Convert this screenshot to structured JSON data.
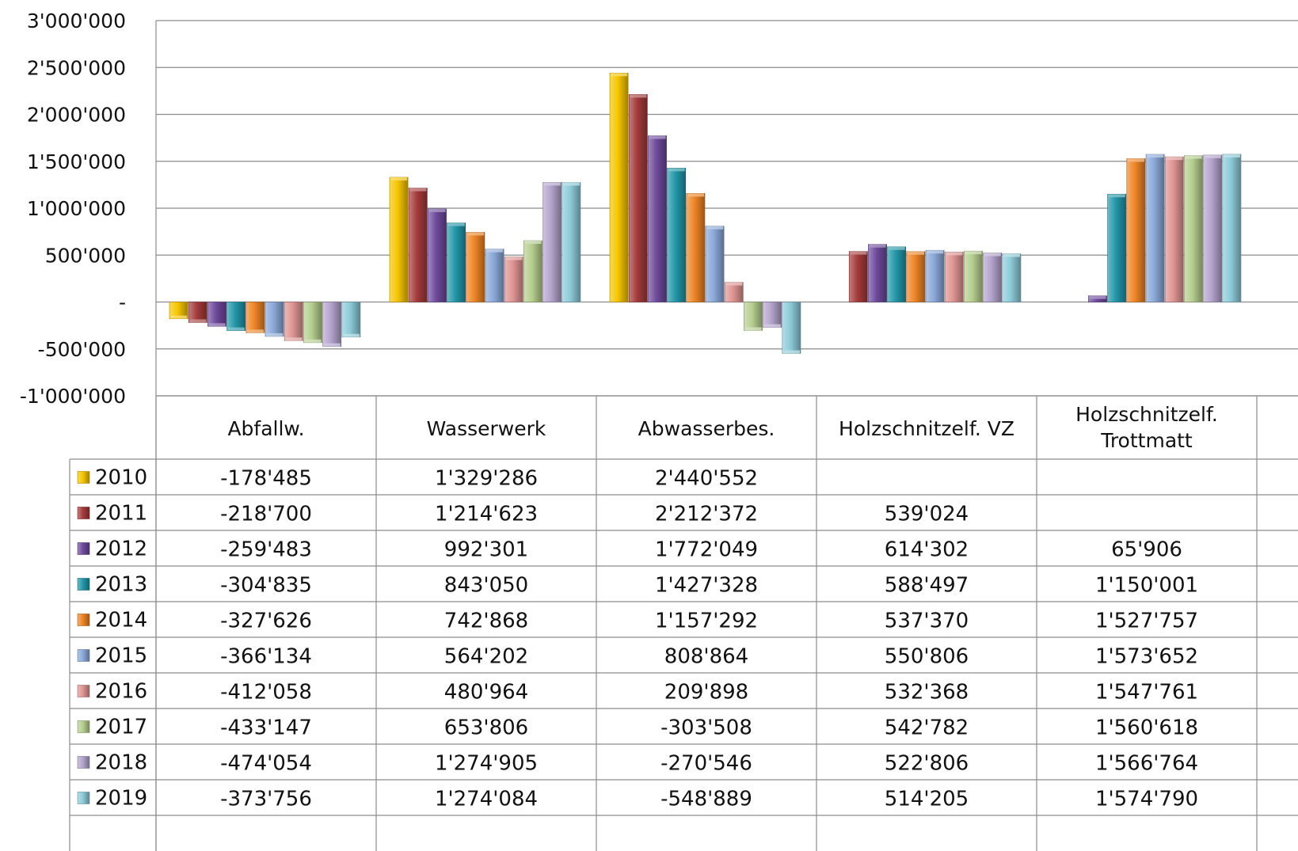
{
  "chart_data": {
    "type": "bar",
    "title": "",
    "xlabel": "",
    "ylabel": "",
    "ylim": [
      -1000000,
      3000000
    ],
    "grid": true,
    "legend": "data-table-bottom",
    "y_ticks": [
      3000000,
      2500000,
      2000000,
      1500000,
      1000000,
      500000,
      0,
      -500000,
      -1000000
    ],
    "y_tick_labels": [
      "3'000'000",
      "2'500'000",
      "2'000'000",
      "1'500'000",
      "1'000'000",
      "500'000",
      "-",
      "-500'000",
      "-1'000'000"
    ],
    "categories": [
      "Abfallw.",
      "Wasserwerk",
      "Abwasserbes.",
      "Holzschnitzelf. VZ",
      "Holzschnitzelf. Trottmatt"
    ],
    "series": [
      {
        "name": "2010",
        "color": "#F5C400",
        "values": [
          -178485,
          1329286,
          2440552,
          null,
          null
        ],
        "labels": [
          "-178'485",
          "1'329'286",
          "2'440'552",
          "",
          ""
        ]
      },
      {
        "name": "2011",
        "color": "#A43A3A",
        "values": [
          -218700,
          1214623,
          2212372,
          539024,
          null
        ],
        "labels": [
          "-218'700",
          "1'214'623",
          "2'212'372",
          "539'024",
          ""
        ]
      },
      {
        "name": "2012",
        "color": "#6E4A9C",
        "values": [
          -259483,
          992301,
          1772049,
          614302,
          65906
        ],
        "labels": [
          "-259'483",
          "992'301",
          "1'772'049",
          "614'302",
          "65'906"
        ]
      },
      {
        "name": "2013",
        "color": "#2296A8",
        "values": [
          -304835,
          843050,
          1427328,
          588497,
          1150001
        ],
        "labels": [
          "-304'835",
          "843'050",
          "1'427'328",
          "588'497",
          "1'150'001"
        ]
      },
      {
        "name": "2014",
        "color": "#EE8425",
        "values": [
          -327626,
          742868,
          1157292,
          537370,
          1527757
        ],
        "labels": [
          "-327'626",
          "742'868",
          "1'157'292",
          "537'370",
          "1'527'757"
        ]
      },
      {
        "name": "2015",
        "color": "#8AA8D8",
        "values": [
          -366134,
          564202,
          808864,
          550806,
          1573652
        ],
        "labels": [
          "-366'134",
          "564'202",
          "808'864",
          "550'806",
          "1'573'652"
        ]
      },
      {
        "name": "2016",
        "color": "#DE9492",
        "values": [
          -412058,
          480964,
          209898,
          532368,
          1547761
        ],
        "labels": [
          "-412'058",
          "480'964",
          "209'898",
          "532'368",
          "1'547'761"
        ]
      },
      {
        "name": "2017",
        "color": "#B5CE8E",
        "values": [
          -433147,
          653806,
          -303508,
          542782,
          1560618
        ],
        "labels": [
          "-433'147",
          "653'806",
          "-303'508",
          "542'782",
          "1'560'618"
        ]
      },
      {
        "name": "2018",
        "color": "#B3A3CC",
        "values": [
          -474054,
          1274905,
          -270546,
          522806,
          1566764
        ],
        "labels": [
          "-474'054",
          "1'274'905",
          "-270'546",
          "522'806",
          "1'566'764"
        ]
      },
      {
        "name": "2019",
        "color": "#8CCAD8",
        "values": [
          -373756,
          1274084,
          -548889,
          514205,
          1574790
        ],
        "labels": [
          "-373'756",
          "1'274'084",
          "-548'889",
          "514'205",
          "1'574'790"
        ]
      }
    ]
  }
}
